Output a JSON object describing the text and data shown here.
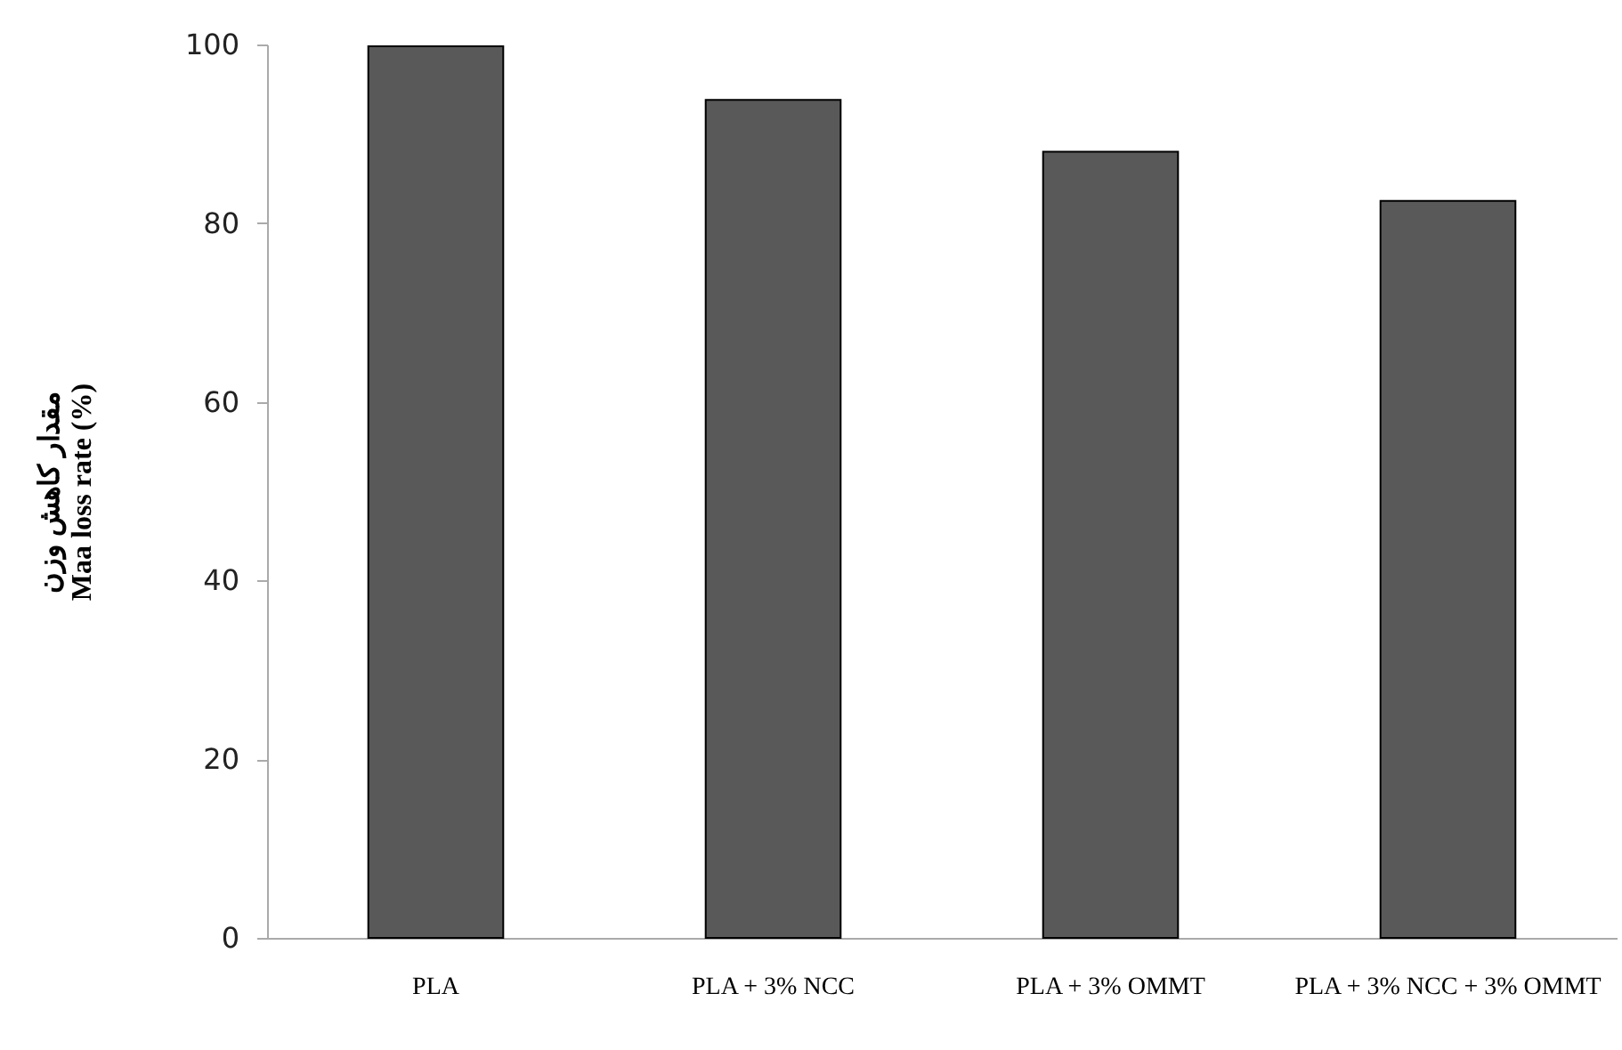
{
  "chart_data": {
    "type": "bar",
    "ylabel": "مقدار کاهش وزن\nMaa loss rate (%)",
    "categories": [
      "PLA",
      "PLA + 3% NCC",
      "PLA + 3% OMMT",
      "PLA + 3% NCC + 3% OMMT"
    ],
    "values": [
      99.8,
      93.8,
      88.0,
      82.5
    ],
    "color": "#595959",
    "ylim": [
      0,
      100
    ],
    "yticks": [
      0,
      20,
      40,
      60,
      80,
      100
    ],
    "grid": false
  }
}
